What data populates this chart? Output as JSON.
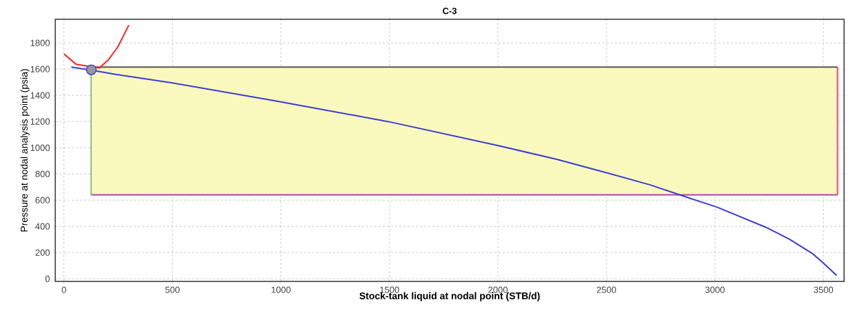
{
  "chart_data": {
    "type": "line",
    "title": "C-3",
    "xlabel": "Stock-tank liquid at nodal point (STB/d)",
    "ylabel": "Pressure at nodal analysis point (psia)",
    "xlim": [
      -40,
      3595
    ],
    "ylim": [
      -20,
      1980
    ],
    "xticks": [
      0,
      500,
      1000,
      1500,
      2000,
      2500,
      3000,
      3500
    ],
    "yticks": [
      0,
      200,
      400,
      600,
      800,
      1000,
      1200,
      1400,
      1600,
      1800
    ],
    "grid": true,
    "series": [
      {
        "color": "#555555",
        "x": [
          125,
          3565
        ],
        "values": [
          1615,
          1615
        ],
        "lower": [
          640,
          640
        ],
        "upper": [
          1615,
          1615
        ]
      },
      {
        "color": "#b040b0",
        "x": [
          125,
          3565
        ],
        "values": [
          640,
          640
        ]
      },
      {
        "color": "#80c080",
        "x": [
          125,
          125
        ],
        "values": [
          640,
          1615
        ]
      },
      {
        "color": "#ff4070",
        "x": [
          3565,
          3565
        ],
        "values": [
          640,
          1615
        ]
      },
      {
        "color": "#3a3ad8",
        "x": [
          34,
          126,
          237,
          500,
          979,
          1099,
          1496,
          1996,
          2271,
          2495,
          2702,
          2857,
          3012,
          3236,
          3342,
          3448,
          3501,
          3561
        ],
        "values": [
          1615,
          1592,
          1560,
          1495,
          1356,
          1320,
          1199,
          1018,
          912,
          812,
          716,
          630,
          545,
          392,
          303,
          194,
          118,
          25
        ]
      },
      {
        "color": "#ff2020",
        "x": [
          0,
          57,
          126,
          163,
          205,
          248,
          299
        ],
        "values": [
          1715,
          1636,
          null,
          1609,
          1671,
          1768,
          1936
        ]
      },
      {
        "type": "scatter",
        "color": "#4040e0",
        "marker": "circle",
        "x": [
          126
        ],
        "values": [
          1595
        ]
      }
    ]
  }
}
